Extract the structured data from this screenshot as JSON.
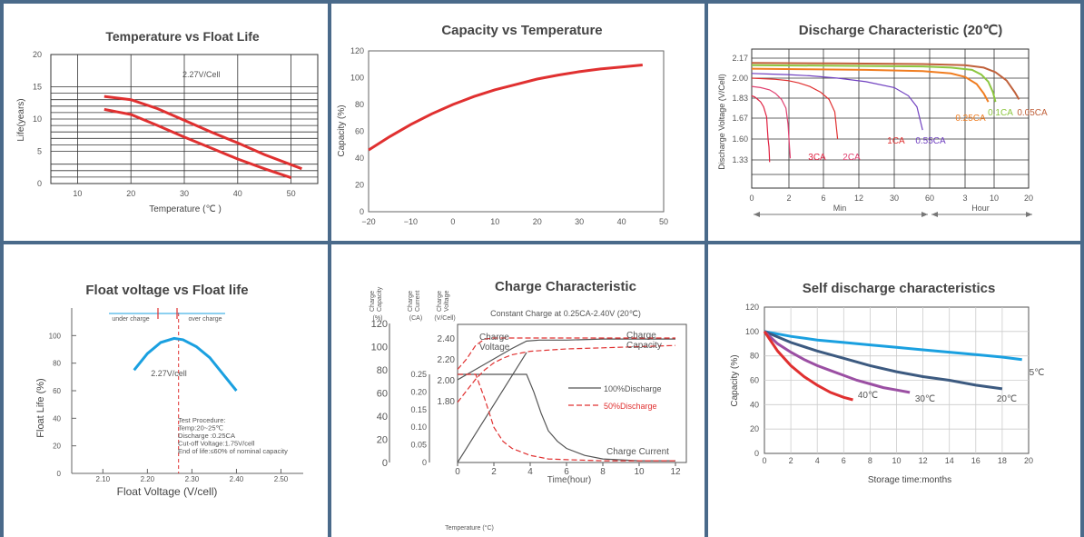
{
  "colors": {
    "red": "#e03030",
    "blue": "#1aa0e0",
    "navy": "#3c5a80",
    "purple": "#9b4fa3",
    "orange": "#f07d20",
    "green": "#8cc63f",
    "brown": "#c0603a",
    "pink": "#e04070",
    "violet": "#7040c0",
    "crimson": "#e02040",
    "dark": "#555555"
  },
  "chart_data": [
    {
      "type": "line",
      "title": "Temperature vs Float Life",
      "xlabel": "Temperature (℃ )",
      "ylabel": "Life(years)",
      "xlim": [
        5,
        55
      ],
      "ylim": [
        0,
        20
      ],
      "xticks": [
        10,
        20,
        30,
        40,
        50
      ],
      "yticks": [
        0,
        5,
        10,
        15,
        20
      ],
      "hgrid": [
        1,
        2,
        3,
        6,
        7,
        8,
        9,
        11,
        12,
        13,
        14
      ],
      "annotation": "2.27V/Cell",
      "series": [
        {
          "x": [
            15,
            20,
            25,
            30,
            35,
            40,
            45,
            52
          ],
          "y": [
            13.5,
            13.0,
            11.6,
            9.8,
            8.0,
            6.3,
            4.5,
            2.3
          ]
        },
        {
          "x": [
            15,
            20,
            25,
            30,
            35,
            40,
            45,
            50
          ],
          "y": [
            11.5,
            10.7,
            9.0,
            7.2,
            5.5,
            3.8,
            2.3,
            0.9
          ]
        }
      ]
    },
    {
      "type": "line",
      "title": "Capacity vs Temperature",
      "xlabel": "",
      "ylabel": "Capacity (%)",
      "xlim": [
        -20,
        50
      ],
      "ylim": [
        0,
        120
      ],
      "xticks": [
        -20,
        -10,
        0,
        10,
        20,
        30,
        40,
        50
      ],
      "yticks": [
        0,
        20,
        40,
        60,
        80,
        100,
        120
      ],
      "series": [
        {
          "x": [
            -20,
            -15,
            -10,
            -5,
            0,
            5,
            10,
            15,
            20,
            25,
            30,
            35,
            40,
            45
          ],
          "y": [
            46,
            56,
            65,
            73,
            80,
            86,
            91,
            95,
            99,
            102,
            104.5,
            106.5,
            108,
            109.5
          ]
        }
      ]
    },
    {
      "type": "line",
      "title": "Discharge Characteristic (20℃)",
      "ylabel": "Discharge Voltage (V/Cell)",
      "x_ticks_text": [
        "0",
        "2",
        "6",
        "12",
        "30",
        "60",
        "3",
        "10",
        "20"
      ],
      "y_ticks_text": [
        "2.17",
        "2.00",
        "1.83",
        "1.67",
        "1.60",
        "1.33"
      ],
      "x_groups": [
        "Min",
        "Hour"
      ],
      "series": [
        {
          "name": "3CA",
          "x": [
            0,
            1,
            2,
            3,
            4,
            5,
            5.5,
            5.8,
            5.9,
            6
          ],
          "y": [
            1.85,
            1.84,
            1.82,
            1.8,
            1.76,
            1.68,
            1.6,
            1.5,
            1.4,
            1.3
          ]
        },
        {
          "name": "2CA",
          "x": [
            0,
            3,
            6,
            8,
            10,
            11.5,
            12.2,
            12.7,
            13
          ],
          "y": [
            1.93,
            1.92,
            1.9,
            1.87,
            1.82,
            1.75,
            1.65,
            1.5,
            1.35
          ]
        },
        {
          "name": "1CA",
          "x": [
            0,
            4,
            8,
            12,
            16,
            20,
            24,
            27,
            29,
            30
          ],
          "y": [
            2.0,
            1.995,
            1.99,
            1.98,
            1.96,
            1.93,
            1.88,
            1.82,
            1.72,
            1.6
          ]
        },
        {
          "name": "0.55CA",
          "x": [
            0,
            6,
            12,
            20,
            30,
            40,
            50,
            55,
            58,
            60
          ],
          "y": [
            2.04,
            2.035,
            2.03,
            2.02,
            2.0,
            1.97,
            1.92,
            1.85,
            1.76,
            1.63
          ]
        },
        {
          "name": "0.25CA",
          "x": [
            0,
            20,
            40,
            60,
            70,
            75,
            80,
            83,
            85
          ],
          "y": [
            2.08,
            2.075,
            2.07,
            2.06,
            2.04,
            2.01,
            1.95,
            1.87,
            1.8
          ]
        },
        {
          "name": "0.1CA",
          "x": [
            0,
            30,
            60,
            70,
            78,
            82,
            85,
            87,
            88
          ],
          "y": [
            2.11,
            2.105,
            2.1,
            2.09,
            2.07,
            2.03,
            1.97,
            1.88,
            1.8
          ]
        },
        {
          "name": "0.05CA",
          "x": [
            0,
            30,
            60,
            75,
            83,
            88,
            92,
            95,
            96.5
          ],
          "y": [
            2.13,
            2.125,
            2.12,
            2.11,
            2.09,
            2.05,
            1.98,
            1.88,
            1.82
          ]
        }
      ]
    },
    {
      "type": "line",
      "title": "Float voltage vs Float life",
      "xlabel": "Float Voltage (V/cell)",
      "ylabel": "Float Life (%)",
      "xlim": [
        2.03,
        2.55
      ],
      "ylim": [
        0,
        120
      ],
      "xticks": [
        2.1,
        2.2,
        2.3,
        2.4,
        2.5
      ],
      "yticks": [
        0,
        20,
        40,
        60,
        80,
        100
      ],
      "annotation": "2.27V/cell",
      "range_left": "under charge",
      "range_right": "over charge",
      "procedure": [
        "Test Procedure:",
        "Temp:20~25℃",
        "Discharge :0.25CA",
        "Cut-off Voltage:1.75V/cell",
        "End of life:≤60% of nominal capacity"
      ],
      "series": [
        {
          "x": [
            2.17,
            2.2,
            2.23,
            2.26,
            2.28,
            2.31,
            2.34,
            2.37,
            2.4
          ],
          "y": [
            75,
            87,
            95,
            98,
            97,
            92,
            84,
            72,
            60
          ]
        }
      ]
    },
    {
      "type": "line",
      "title": "Charge Characteristic",
      "subtitle": "Constant Charge at 0.25CA-2.40V  (20℃)",
      "xlabel": "Time(hour)",
      "footer": "Temperature (°C)",
      "axis_headers": [
        [
          "Charge",
          "Capacity",
          "(%)"
        ],
        [
          "Charge",
          "Current",
          "(CA)"
        ],
        [
          "Charge",
          "Voltage",
          "(V/Cell)"
        ]
      ],
      "xticks": [
        0,
        2,
        4,
        6,
        8,
        10,
        12
      ],
      "capacity_ticks": [
        0,
        20,
        40,
        60,
        80,
        100,
        120
      ],
      "current_ticks": [
        "0",
        "0.05",
        "0.10",
        "0.15",
        "0.20",
        "0.25"
      ],
      "voltage_ticks": [
        "1.80",
        "2.00",
        "2.20",
        "2.40"
      ],
      "legend": [
        "100%Discharge",
        "50%Discharge"
      ],
      "curve_labels": {
        "voltage": "Charge\nVoltage",
        "capacity": "Charge\nCapacity",
        "current": "Charge Current"
      },
      "series": [
        {
          "name": "100%Discharge",
          "kind": "capacity",
          "x": [
            0,
            1,
            2,
            3,
            3.8
          ],
          "y": [
            0,
            25,
            50,
            75,
            95
          ]
        },
        {
          "name": "100%Discharge",
          "kind": "voltage",
          "x": [
            0,
            1,
            2,
            3,
            3.8,
            4.5,
            5,
            6,
            8,
            12
          ],
          "y": [
            2.0,
            2.1,
            2.2,
            2.3,
            2.37,
            2.38,
            2.38,
            2.38,
            2.39,
            2.39
          ]
        },
        {
          "name": "100%Discharge",
          "kind": "current",
          "x": [
            0,
            3.8,
            4.2,
            4.6,
            5,
            5.5,
            6,
            7,
            8,
            10,
            12
          ],
          "y": [
            0.25,
            0.25,
            0.2,
            0.14,
            0.09,
            0.06,
            0.04,
            0.02,
            0.01,
            0.005,
            0.005
          ]
        },
        {
          "name": "50%Discharge",
          "kind": "capacity",
          "x": [
            0,
            0.5,
            1,
            1.5,
            2,
            2.5,
            3,
            4,
            6,
            8,
            10,
            12
          ],
          "y": [
            52,
            62,
            72,
            80,
            86,
            90,
            93,
            96,
            98,
            99,
            100,
            101
          ]
        },
        {
          "name": "50%Discharge",
          "kind": "voltage",
          "x": [
            0,
            0.5,
            1,
            1.5,
            2,
            3,
            4,
            6,
            12
          ],
          "y": [
            2.1,
            2.2,
            2.33,
            2.39,
            2.4,
            2.4,
            2.4,
            2.4,
            2.4
          ]
        },
        {
          "name": "50%Discharge",
          "kind": "current",
          "x": [
            0,
            1,
            1.5,
            2,
            2.5,
            3,
            4,
            5,
            6,
            8,
            12
          ],
          "y": [
            0.25,
            0.25,
            0.18,
            0.1,
            0.06,
            0.04,
            0.02,
            0.01,
            0.008,
            0.005,
            0.005
          ]
        }
      ]
    },
    {
      "type": "line",
      "title": "Self discharge characteristics",
      "xlabel": "Storage time:months",
      "ylabel": "Capacity (%)",
      "xlim": [
        0,
        20
      ],
      "ylim": [
        0,
        120
      ],
      "xticks": [
        0,
        2,
        4,
        6,
        8,
        10,
        12,
        14,
        16,
        18,
        20
      ],
      "yticks": [
        0,
        20,
        40,
        60,
        80,
        100,
        120
      ],
      "series": [
        {
          "name": "5℃",
          "x": [
            0,
            2,
            4,
            6,
            8,
            10,
            12,
            14,
            16,
            18,
            19.5
          ],
          "y": [
            100,
            96,
            93,
            91,
            89,
            87,
            85,
            83,
            81,
            79,
            77
          ]
        },
        {
          "name": "20℃",
          "x": [
            0,
            2,
            4,
            6,
            8,
            10,
            12,
            14,
            16,
            18
          ],
          "y": [
            100,
            91,
            84,
            78,
            72,
            67,
            63,
            60,
            56,
            53
          ]
        },
        {
          "name": "30℃",
          "x": [
            0,
            1,
            2,
            3,
            4,
            5,
            6,
            7,
            8,
            9,
            10,
            11
          ],
          "y": [
            100,
            90,
            83,
            77,
            72,
            68,
            64,
            60,
            57,
            54,
            52,
            50
          ]
        },
        {
          "name": "40℃",
          "x": [
            0,
            1,
            2,
            3,
            4,
            5,
            6,
            6.7
          ],
          "y": [
            100,
            84,
            72,
            63,
            56,
            50,
            46,
            44
          ]
        }
      ]
    }
  ]
}
